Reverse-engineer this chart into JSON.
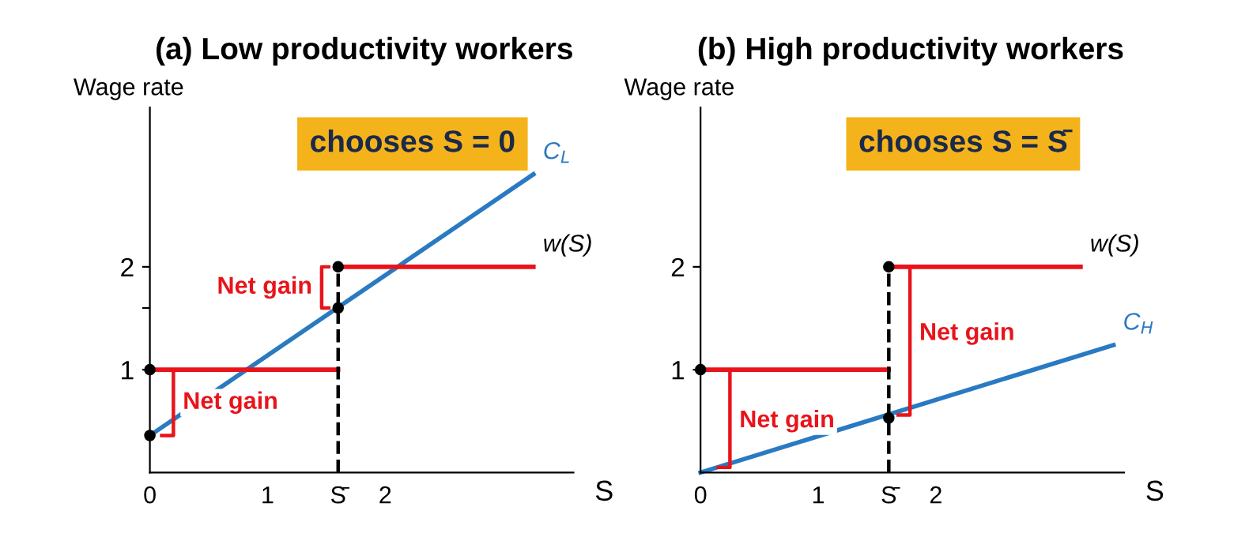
{
  "chart_data": [
    {
      "type": "line",
      "title": "(a) Low productivity workers",
      "xlabel": "S",
      "ylabel": "Wage rate",
      "xlim": [
        0,
        3.6
      ],
      "ylim": [
        0,
        3.55
      ],
      "xticks": [
        0,
        1,
        {
          "value": 1.6,
          "label": "S̄"
        },
        2
      ],
      "yticks": [
        1,
        {
          "value": 1.6,
          "label": null
        },
        2
      ],
      "grid": false,
      "legend": false,
      "series": [
        {
          "name": "C$_{L}$",
          "color": "#2a7ac2",
          "x": [
            0,
            3.26
          ],
          "values": [
            0.36,
            2.9
          ]
        },
        {
          "name": "w(S)",
          "color": "#e8141b",
          "x": [
            0,
            1.6,
            null,
            1.6,
            3.26
          ],
          "values": [
            1,
            1,
            null,
            2,
            2
          ]
        },
        {
          "color": "#000000",
          "line_style": "dashed",
          "x": [
            1.6,
            1.6
          ],
          "values": [
            0,
            2
          ]
        },
        {
          "color": "#e8141b",
          "x": [
            0.1,
            0.2,
            0.2,
            0.1
          ],
          "values": [
            0.36,
            0.36,
            1,
            1
          ]
        },
        {
          "color": "#e8141b",
          "x": [
            1.52,
            1.46,
            1.46,
            1.52
          ],
          "values": [
            1.6,
            1.6,
            2,
            2
          ]
        },
        {
          "type": "scatter",
          "color": "#000000",
          "marker": "circle",
          "x": [
            0,
            0,
            1.6,
            1.6
          ],
          "values": [
            1,
            0.36,
            2,
            1.6
          ]
        }
      ],
      "annotations": [
        "chooses S = 0",
        {
          "text": "Net gain",
          "x": 0.2,
          "y": 0.68
        },
        {
          "text": "Net gain",
          "x": 1.46,
          "y": 1.8
        }
      ]
    },
    {
      "type": "line",
      "title": "(b) High productivity workers",
      "xlabel": "S",
      "ylabel": "Wage rate",
      "xlim": [
        0,
        3.6
      ],
      "ylim": [
        0,
        3.55
      ],
      "xticks": [
        0,
        1,
        {
          "value": 1.6,
          "label": "S̄"
        },
        2
      ],
      "yticks": [
        1,
        2
      ],
      "grid": false,
      "legend": false,
      "series": [
        {
          "name": "C$_{H}$",
          "color": "#2a7ac2",
          "x": [
            0,
            3.51
          ],
          "values": [
            0,
            1.24
          ]
        },
        {
          "name": "w(S)",
          "color": "#e8141b",
          "x": [
            0,
            1.6,
            null,
            1.6,
            3.23
          ],
          "values": [
            1,
            1,
            null,
            2,
            2
          ]
        },
        {
          "color": "#000000",
          "line_style": "dashed",
          "x": [
            1.6,
            1.6
          ],
          "values": [
            0,
            2
          ]
        },
        {
          "color": "#e8141b",
          "x": [
            0.15,
            0.25,
            0.25,
            0.15
          ],
          "values": [
            0.05,
            0.05,
            1,
            1
          ]
        },
        {
          "color": "#e8141b",
          "x": [
            1.68,
            1.78,
            1.78,
            1.68
          ],
          "values": [
            0.56,
            0.56,
            2,
            2
          ]
        },
        {
          "type": "scatter",
          "color": "#000000",
          "marker": "circle",
          "x": [
            0,
            1.6,
            1.6
          ],
          "values": [
            1,
            2,
            0.53
          ]
        }
      ],
      "annotations": [
        "chooses S = S̄",
        {
          "text": "Net gain",
          "x": 0.25,
          "y": 0.5
        },
        {
          "text": "Net gain",
          "x": 1.78,
          "y": 1.35
        }
      ]
    }
  ]
}
